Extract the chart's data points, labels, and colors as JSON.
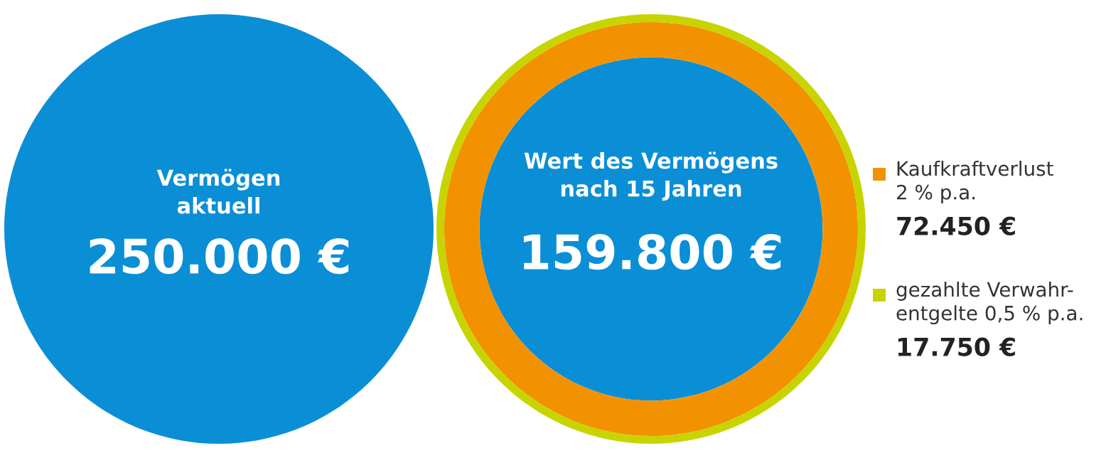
{
  "chart_data": {
    "type": "other",
    "categories": [
      "Vermögen\naktuell",
      "Wert des Vermögens\nnach 15 Jahren",
      "Kaufkraftverlust\n2 % p.a.",
      "gezahlte Verwahr-\nentgelte 0,5 % p.a."
    ],
    "values": [
      250000,
      159800,
      72450,
      17750
    ],
    "value_labels": [
      "250.000 €",
      "159.800 €",
      "72.450 €",
      "17.750 €"
    ],
    "colors": [
      "#0a8fd6",
      "#0a8fd6",
      "#f39200",
      "#c8d400"
    ]
  }
}
